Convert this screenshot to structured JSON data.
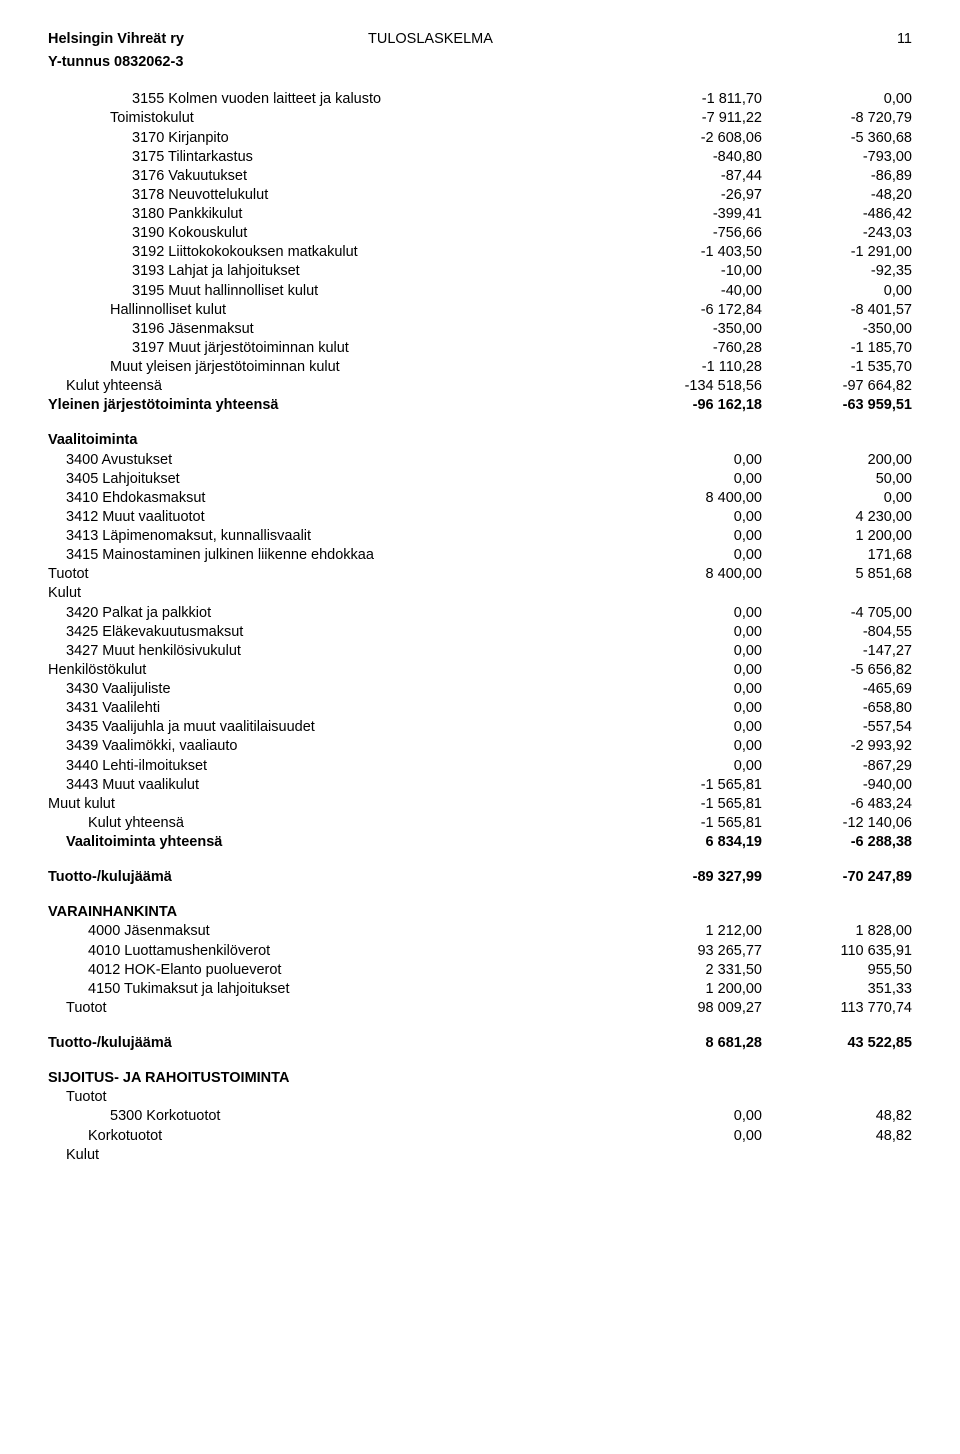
{
  "header": {
    "orgName": "Helsingin Vihreät ry",
    "docTitle": "TULOSLASKELMA",
    "pageNo": "11",
    "yTunnus": "Y-tunnus 0832062-3"
  },
  "rows": [
    {
      "label": "3155 Kolmen vuoden laitteet ja kalusto",
      "v1": "-1 811,70",
      "v2": "0,00",
      "indent": 4
    },
    {
      "label": "Toimistokulut",
      "v1": "-7 911,22",
      "v2": "-8 720,79",
      "indent": 3
    },
    {
      "label": "3170 Kirjanpito",
      "v1": "-2 608,06",
      "v2": "-5 360,68",
      "indent": 4
    },
    {
      "label": "3175 Tilintarkastus",
      "v1": "-840,80",
      "v2": "-793,00",
      "indent": 4
    },
    {
      "label": "3176 Vakuutukset",
      "v1": "-87,44",
      "v2": "-86,89",
      "indent": 4
    },
    {
      "label": "3178 Neuvottelukulut",
      "v1": "-26,97",
      "v2": "-48,20",
      "indent": 4
    },
    {
      "label": "3180 Pankkikulut",
      "v1": "-399,41",
      "v2": "-486,42",
      "indent": 4
    },
    {
      "label": "3190 Kokouskulut",
      "v1": "-756,66",
      "v2": "-243,03",
      "indent": 4
    },
    {
      "label": "3192 Liittokokokouksen matkakulut",
      "v1": "-1 403,50",
      "v2": "-1 291,00",
      "indent": 4
    },
    {
      "label": "3193 Lahjat ja lahjoitukset",
      "v1": "-10,00",
      "v2": "-92,35",
      "indent": 4
    },
    {
      "label": "3195 Muut hallinnolliset kulut",
      "v1": "-40,00",
      "v2": "0,00",
      "indent": 4
    },
    {
      "label": "Hallinnolliset kulut",
      "v1": "-6 172,84",
      "v2": "-8 401,57",
      "indent": 3
    },
    {
      "label": "3196 Jäsenmaksut",
      "v1": "-350,00",
      "v2": "-350,00",
      "indent": 4
    },
    {
      "label": "3197 Muut järjestötoiminnan kulut",
      "v1": "-760,28",
      "v2": "-1 185,70",
      "indent": 4
    },
    {
      "label": "Muut yleisen järjestötoiminnan kulut",
      "v1": "-1 110,28",
      "v2": "-1 535,70",
      "indent": 3
    },
    {
      "label": "Kulut yhteensä",
      "v1": "-134 518,56",
      "v2": "-97 664,82",
      "indent": 1
    },
    {
      "label": "Yleinen järjestötoiminta yhteensä",
      "v1": "-96 162,18",
      "v2": "-63 959,51",
      "indent": 0,
      "bold": true
    },
    {
      "spacer": true
    },
    {
      "label": "Vaalitoiminta",
      "indent": 0,
      "bold": true
    },
    {
      "label": "3400 Avustukset",
      "v1": "0,00",
      "v2": "200,00",
      "indent": 1
    },
    {
      "label": "3405 Lahjoitukset",
      "v1": "0,00",
      "v2": "50,00",
      "indent": 1
    },
    {
      "label": "3410 Ehdokasmaksut",
      "v1": "8 400,00",
      "v2": "0,00",
      "indent": 1
    },
    {
      "label": "3412 Muut vaalituotot",
      "v1": "0,00",
      "v2": "4 230,00",
      "indent": 1
    },
    {
      "label": "3413 Läpimenomaksut, kunnallisvaalit",
      "v1": "0,00",
      "v2": "1 200,00",
      "indent": 1
    },
    {
      "label": "3415 Mainostaminen julkinen liikenne ehdokkaa",
      "v1": "0,00",
      "v2": "171,68",
      "indent": 1
    },
    {
      "label": "Tuotot",
      "v1": "8 400,00",
      "v2": "5 851,68",
      "indent": 0
    },
    {
      "label": "Kulut",
      "indent": 0
    },
    {
      "label": "3420 Palkat ja palkkiot",
      "v1": "0,00",
      "v2": "-4 705,00",
      "indent": 1
    },
    {
      "label": "3425 Eläkevakuutusmaksut",
      "v1": "0,00",
      "v2": "-804,55",
      "indent": 1
    },
    {
      "label": "3427 Muut henkilösivukulut",
      "v1": "0,00",
      "v2": "-147,27",
      "indent": 1
    },
    {
      "label": "Henkilöstökulut",
      "v1": "0,00",
      "v2": "-5 656,82",
      "indent": 0
    },
    {
      "label": "3430 Vaalijuliste",
      "v1": "0,00",
      "v2": "-465,69",
      "indent": 1
    },
    {
      "label": "3431 Vaalilehti",
      "v1": "0,00",
      "v2": "-658,80",
      "indent": 1
    },
    {
      "label": "3435 Vaalijuhla ja muut vaalitilaisuudet",
      "v1": "0,00",
      "v2": "-557,54",
      "indent": 1
    },
    {
      "label": "3439 Vaalimökki, vaaliauto",
      "v1": "0,00",
      "v2": "-2 993,92",
      "indent": 1
    },
    {
      "label": "3440 Lehti-ilmoitukset",
      "v1": "0,00",
      "v2": "-867,29",
      "indent": 1
    },
    {
      "label": "3443 Muut vaalikulut",
      "v1": "-1 565,81",
      "v2": "-940,00",
      "indent": 1
    },
    {
      "label": "Muut kulut",
      "v1": "-1 565,81",
      "v2": "-6 483,24",
      "indent": 0
    },
    {
      "label": "Kulut yhteensä",
      "v1": "-1 565,81",
      "v2": "-12 140,06",
      "indent": 2
    },
    {
      "label": "Vaalitoiminta yhteensä",
      "v1": "6 834,19",
      "v2": "-6 288,38",
      "indent": 1,
      "bold": true
    },
    {
      "spacer": true
    },
    {
      "label": "Tuotto-/kulujäämä",
      "v1": "-89 327,99",
      "v2": "-70 247,89",
      "indent": 0,
      "bold": true
    },
    {
      "spacer": true
    },
    {
      "label": "VARAINHANKINTA",
      "indent": 0,
      "bold": true
    },
    {
      "label": "4000 Jäsenmaksut",
      "v1": "1 212,00",
      "v2": "1 828,00",
      "indent": 2
    },
    {
      "label": "4010 Luottamushenkilöverot",
      "v1": "93 265,77",
      "v2": "110 635,91",
      "indent": 2
    },
    {
      "label": "4012 HOK-Elanto puolueverot",
      "v1": "2 331,50",
      "v2": "955,50",
      "indent": 2
    },
    {
      "label": "4150 Tukimaksut ja lahjoitukset",
      "v1": "1 200,00",
      "v2": "351,33",
      "indent": 2
    },
    {
      "label": "Tuotot",
      "v1": "98 009,27",
      "v2": "113 770,74",
      "indent": 1
    },
    {
      "spacer": true
    },
    {
      "label": "Tuotto-/kulujäämä",
      "v1": "8 681,28",
      "v2": "43 522,85",
      "indent": 0,
      "bold": true
    },
    {
      "spacer": true
    },
    {
      "label": "SIJOITUS- JA RAHOITUSTOIMINTA",
      "indent": 0,
      "bold": true
    },
    {
      "label": "Tuotot",
      "indent": 1
    },
    {
      "label": "5300 Korkotuotot",
      "v1": "0,00",
      "v2": "48,82",
      "indent": 3
    },
    {
      "label": "Korkotuotot",
      "v1": "0,00",
      "v2": "48,82",
      "indent": 2
    },
    {
      "label": "Kulut",
      "indent": 1
    }
  ]
}
